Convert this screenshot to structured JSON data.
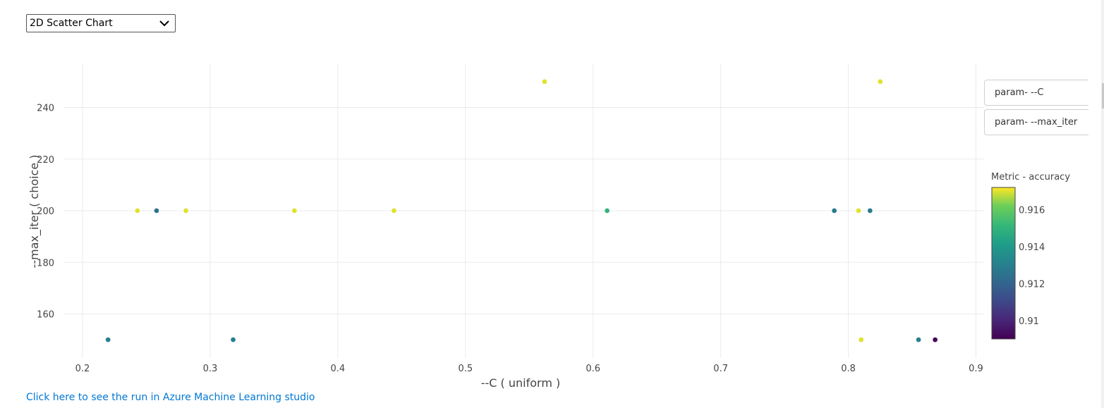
{
  "chart_selector": {
    "selected": "2D Scatter Chart"
  },
  "axis_selectors": {
    "x_param": "param- --C",
    "y_param": "param- --max_iter"
  },
  "link_text": "Click here to see the run in Azure Machine Learning studio",
  "chart_data": {
    "type": "scatter",
    "xlabel": "--C ( uniform )",
    "ylabel": "--max_iter ( choice )",
    "xlim": [
      0.18,
      0.9
    ],
    "ylim": [
      145,
      256
    ],
    "x_ticks": [
      0.2,
      0.3,
      0.4,
      0.5,
      0.6,
      0.7,
      0.8,
      0.9
    ],
    "x_tick_labels": [
      "0.2",
      "0.3",
      "0.4",
      "0.5",
      "0.6",
      "0.7",
      "0.8",
      "0.9"
    ],
    "y_ticks": [
      160,
      180,
      200,
      220,
      240
    ],
    "y_tick_labels": [
      "160",
      "180",
      "200",
      "220",
      "240"
    ],
    "grid": true,
    "colorscale": "viridis",
    "colorbar": {
      "title": "Metric - accuracy",
      "range": [
        0.909,
        0.9172
      ],
      "ticks": [
        0.91,
        0.912,
        0.914,
        0.916
      ],
      "tick_labels": [
        "0.91",
        "0.912",
        "0.914",
        "0.916"
      ]
    },
    "points": [
      {
        "x": 0.22,
        "y": 150,
        "accuracy": 0.913
      },
      {
        "x": 0.318,
        "y": 150,
        "accuracy": 0.913
      },
      {
        "x": 0.81,
        "y": 150,
        "accuracy": 0.917
      },
      {
        "x": 0.855,
        "y": 150,
        "accuracy": 0.913
      },
      {
        "x": 0.868,
        "y": 150,
        "accuracy": 0.9092
      },
      {
        "x": 0.243,
        "y": 200,
        "accuracy": 0.917
      },
      {
        "x": 0.258,
        "y": 200,
        "accuracy": 0.9125
      },
      {
        "x": 0.281,
        "y": 200,
        "accuracy": 0.917
      },
      {
        "x": 0.366,
        "y": 200,
        "accuracy": 0.917
      },
      {
        "x": 0.444,
        "y": 200,
        "accuracy": 0.917
      },
      {
        "x": 0.611,
        "y": 200,
        "accuracy": 0.915
      },
      {
        "x": 0.789,
        "y": 200,
        "accuracy": 0.9128
      },
      {
        "x": 0.808,
        "y": 200,
        "accuracy": 0.917
      },
      {
        "x": 0.817,
        "y": 200,
        "accuracy": 0.9128
      },
      {
        "x": 0.562,
        "y": 250,
        "accuracy": 0.917
      },
      {
        "x": 0.825,
        "y": 250,
        "accuracy": 0.917
      }
    ]
  }
}
